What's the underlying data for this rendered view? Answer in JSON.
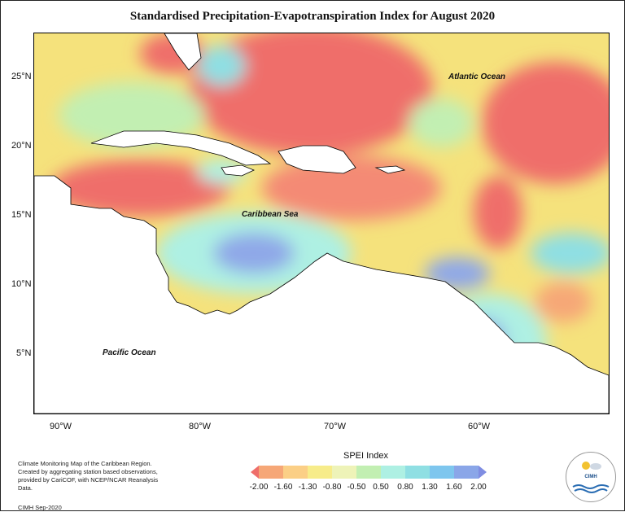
{
  "title": "Standardised Precipitation-Evapotranspiration Index for August 2020",
  "lat_labels": [
    "25°N",
    "20°N",
    "15°N",
    "10°N",
    "5°N"
  ],
  "lon_labels": [
    "90°W",
    "80°W",
    "70°W",
    "60°W"
  ],
  "ocean_labels": {
    "atlantic": "Atlantic Ocean",
    "caribbean": "Caribbean Sea",
    "pacific": "Pacific Ocean"
  },
  "legend": {
    "title": "SPEI Index",
    "ticks": [
      "-2.00",
      "-1.60",
      "-1.30",
      "-0.80",
      "-0.50",
      "0.50",
      "0.80",
      "1.30",
      "1.60",
      "2.00"
    ],
    "colors": [
      "#ef6e6a",
      "#f6a777",
      "#fbcf86",
      "#f7ec8a",
      "#eef3b8",
      "#c2efb2",
      "#aef0e3",
      "#8fdfe3",
      "#7ec6ee",
      "#8aa6e8",
      "#7f8de2"
    ]
  },
  "footer": {
    "line1": "Climate Monitoring Map of the Caribbean Region.",
    "line2": "Created by aggregating station based observations,",
    "line3": "provided by CariCOF, with NCEP/NCAR Reanalysis Data.",
    "credit": "CIMH Sep-2020"
  },
  "logo": {
    "name": "CIMH"
  }
}
